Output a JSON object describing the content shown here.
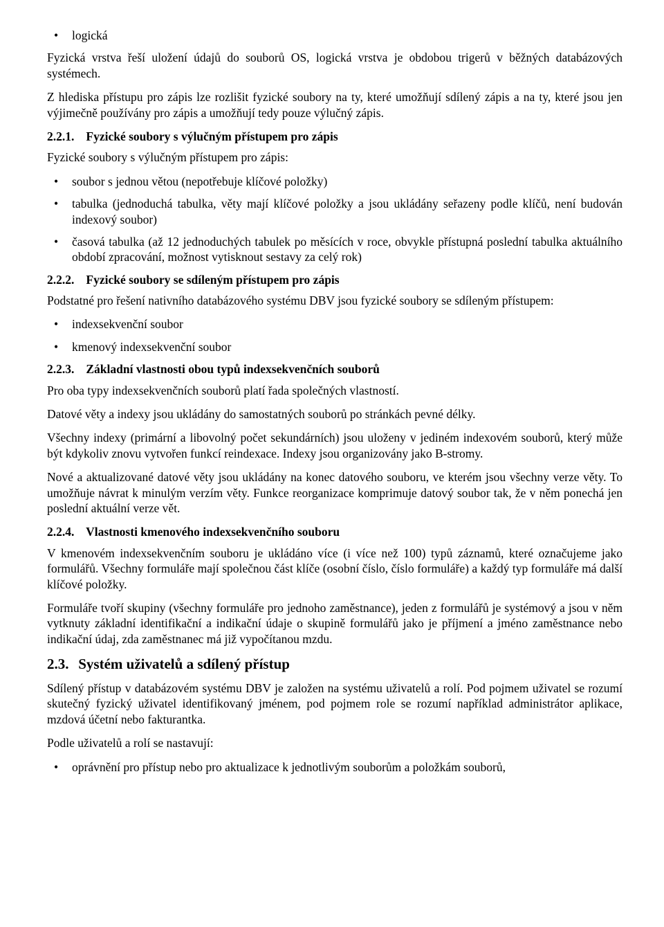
{
  "bullets_top": [
    "logická"
  ],
  "p_fyzicka": "Fyzická vrstva řeší uložení údajů do souborů OS, logická vrstva je obdobou trigerů v běžných databázových systémech.",
  "p_hlediska": "Z hlediska přístupu pro zápis lze rozlišit fyzické soubory na ty, které umožňují sdílený zápis a na ty, které jsou jen výjimečně používány pro zápis a umožňují tedy pouze výlučný zápis.",
  "h221_num": "2.2.1.",
  "h221_title": "Fyzické soubory s výlučným přístupem pro zápis",
  "p_221_intro": "Fyzické soubory s výlučným přístupem pro zápis:",
  "bullets_221": [
    "soubor s jednou větou (nepotřebuje klíčové položky)",
    "tabulka (jednoduchá tabulka, věty mají klíčové položky a jsou ukládány seřazeny podle klíčů, není budován indexový soubor)",
    "časová tabulka (až 12 jednoduchých tabulek po měsících v roce, obvykle přístupná poslední tabulka aktuálního období zpracování, možnost vytisknout sestavy za celý rok)"
  ],
  "h222_num": "2.2.2.",
  "h222_title": "Fyzické soubory se sdíleným přístupem pro zápis",
  "p_222_intro": "Podstatné pro řešení nativního databázového systému DBV jsou fyzické soubory se sdíleným přístupem:",
  "bullets_222": [
    "indexsekvenční soubor",
    "kmenový indexsekvenční soubor"
  ],
  "h223_num": "2.2.3.",
  "h223_title": "Základní vlastnosti obou typů indexsekvenčních souborů",
  "p_223_1": "Pro oba typy indexsekvenčních souborů platí řada společných vlastností.",
  "p_223_2": "Datové věty a indexy jsou ukládány do samostatných souborů po stránkách pevné délky.",
  "p_223_3": "Všechny indexy (primární a libovolný počet sekundárních) jsou uloženy v jediném indexovém souborů, který může být kdykoliv znovu vytvořen funkcí reindexace. Indexy jsou organizovány jako B-stromy.",
  "p_223_4": "Nové a aktualizované datové věty jsou ukládány na konec datového souboru, ve kterém jsou všechny verze věty. To umožňuje návrat k minulým verzím věty. Funkce reorganizace komprimuje datový soubor tak, že v něm ponechá jen poslední aktuální verze vět.",
  "h224_num": "2.2.4.",
  "h224_title": "Vlastnosti kmenového indexsekvenčního souboru",
  "p_224_1": "V kmenovém indexsekvenčním souboru je ukládáno více (i více než 100) typů záznamů, které označujeme jako formulářů. Všechny formuláře mají společnou část klíče (osobní číslo, číslo formuláře) a každý typ formuláře má další klíčové položky.",
  "p_224_2": "Formuláře tvoří skupiny (všechny formuláře pro jednoho zaměstnance), jeden z formulářů je systémový a jsou v něm vytknuty základní identifikační a indikační údaje o skupině formulářů jako je příjmení a jméno zaměstnance nebo indikační údaj, zda zaměstnanec má již vypočítanou mzdu.",
  "h23_num": "2.3.",
  "h23_title": "Systém uživatelů a sdílený přístup",
  "p_23_1": "Sdílený přístup v databázovém systému DBV je založen na systému uživatelů a rolí. Pod pojmem uživatel se rozumí skutečný fyzický uživatel identifikovaný jménem, pod pojmem role se rozumí například administrátor aplikace, mzdová účetní nebo fakturantka.",
  "p_23_2": "Podle uživatelů a rolí se nastavují:",
  "bullets_23": [
    "oprávnění pro přístup nebo pro aktualizace k jednotlivým souborům a položkám souborů,"
  ]
}
